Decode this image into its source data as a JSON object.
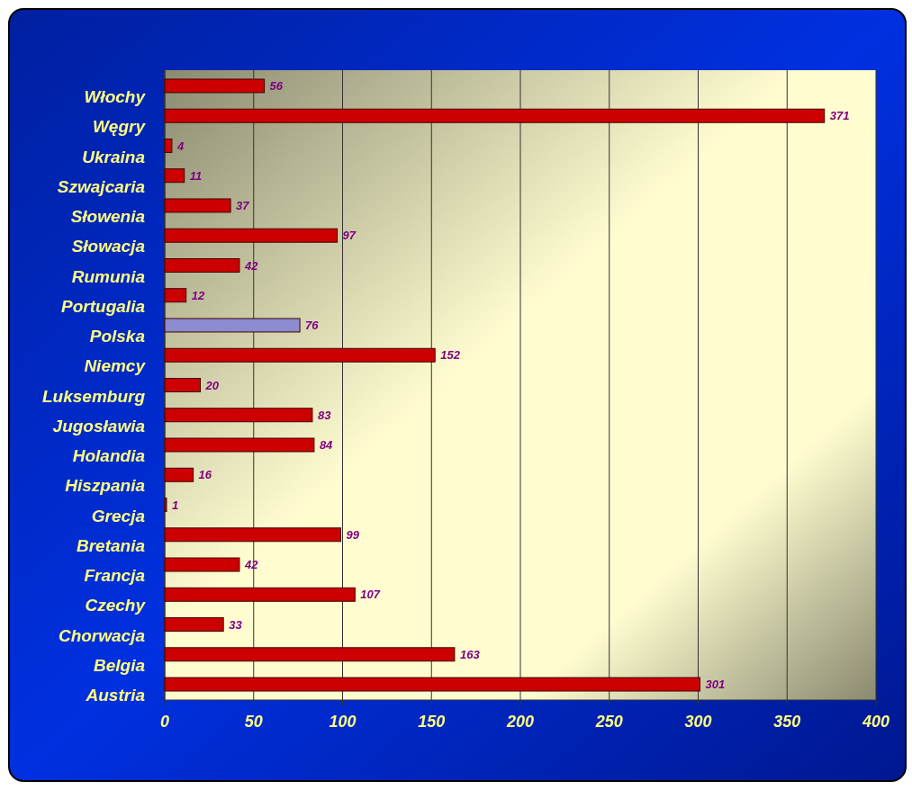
{
  "chart_data": {
    "type": "bar",
    "orientation": "horizontal",
    "categories": [
      "Włochy",
      "Węgry",
      "Ukraina",
      "Szwajcaria",
      "Słowenia",
      "Słowacja",
      "Rumunia",
      "Portugalia",
      "Polska",
      "Niemcy",
      "Luksemburg",
      "Jugosławia",
      "Holandia",
      "Hiszpania",
      "Grecja",
      "Bretania",
      "Francja",
      "Czechy",
      "Chorwacja",
      "Belgia",
      "Austria"
    ],
    "values": [
      56,
      371,
      4,
      11,
      37,
      97,
      42,
      12,
      76,
      152,
      20,
      83,
      84,
      16,
      1,
      99,
      42,
      107,
      33,
      163,
      301
    ],
    "colors": [
      "#cc0000",
      "#cc0000",
      "#cc0000",
      "#cc0000",
      "#cc0000",
      "#cc0000",
      "#cc0000",
      "#cc0000",
      "#8c8cd0",
      "#cc0000",
      "#cc0000",
      "#cc0000",
      "#cc0000",
      "#cc0000",
      "#cc0000",
      "#cc0000",
      "#cc0000",
      "#cc0000",
      "#cc0000",
      "#cc0000",
      "#cc0000"
    ],
    "xlim": [
      0,
      400
    ],
    "xticks": [
      0,
      50,
      100,
      150,
      200,
      250,
      300,
      350,
      400
    ],
    "grid": "x",
    "data_labels": true
  }
}
